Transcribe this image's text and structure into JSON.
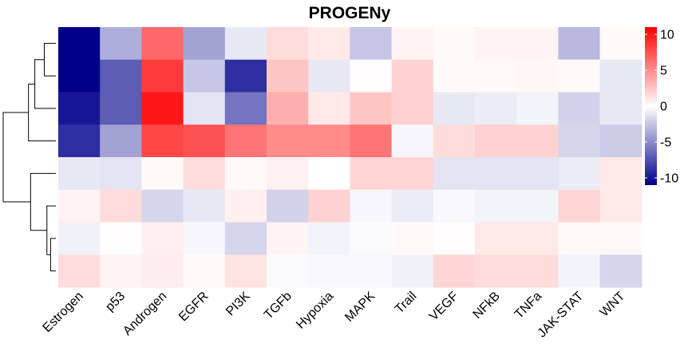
{
  "chart_data": {
    "type": "heatmap",
    "title": "PROGENy",
    "columns": [
      "Estrogen",
      "p53",
      "Androgen",
      "EGFR",
      "PI3K",
      "TGFb",
      "Hypoxia",
      "MAPK",
      "Trail",
      "VEGF",
      "NFkB",
      "TNFa",
      "JAK-STAT",
      "WNT"
    ],
    "row_labels": [],
    "values": [
      [
        -11,
        -3.5,
        6.5,
        -4,
        -1,
        1.5,
        1,
        -2.5,
        0.5,
        0.2,
        0.5,
        0.5,
        -3,
        0.2
      ],
      [
        -11,
        -7,
        8.5,
        -2.5,
        -9,
        2.5,
        -1,
        0.1,
        2,
        0.2,
        0.3,
        0.4,
        0.2,
        -1
      ],
      [
        -10,
        -7,
        10,
        -1.2,
        -6,
        3.5,
        1,
        2.5,
        2,
        -1,
        -0.8,
        -0.5,
        -2,
        -1
      ],
      [
        -9,
        -4,
        8,
        7.5,
        6,
        5,
        5,
        6,
        -0.4,
        1.5,
        2,
        2,
        -1.8,
        -2.2
      ],
      [
        -1,
        -1.2,
        0.2,
        1.5,
        0.3,
        0.6,
        0,
        1.8,
        1.8,
        -1.2,
        -1.2,
        -1.2,
        -0.8,
        1
      ],
      [
        0.5,
        1.5,
        -1.8,
        -1,
        0.7,
        -2,
        2,
        -0.4,
        -0.8,
        -0.3,
        -0.5,
        -0.5,
        1.8,
        1
      ],
      [
        -0.6,
        0.1,
        0.7,
        -0.4,
        -1.8,
        0.5,
        -0.5,
        -0.2,
        0.2,
        0.1,
        1,
        1,
        0.3,
        0.3
      ],
      [
        1.5,
        0.5,
        0.8,
        0.3,
        1.2,
        -0.2,
        -0.3,
        -0.3,
        -0.6,
        1.8,
        1.5,
        1.5,
        -0.5,
        -1.8
      ]
    ],
    "colorbar": {
      "min": -11,
      "max": 11,
      "low_color": "#00008b",
      "mid_color": "#ffffff",
      "high_color": "#ff0000",
      "ticks": [
        10,
        5,
        0,
        -5,
        -10
      ]
    },
    "dendrogram": {
      "merges": [
        {
          "a": 0,
          "b": 1,
          "height": 0.22
        },
        {
          "a": 2,
          "b": "m0",
          "height": 0.4
        },
        {
          "a": 3,
          "b": "m1",
          "height": 0.52
        },
        {
          "a": 6,
          "b": 7,
          "height": 0.1
        },
        {
          "a": 5,
          "b": "m3",
          "height": 0.17
        },
        {
          "a": 4,
          "b": "m4",
          "height": 0.48
        },
        {
          "a": "m2",
          "b": "m5",
          "height": 1.0
        }
      ]
    }
  }
}
